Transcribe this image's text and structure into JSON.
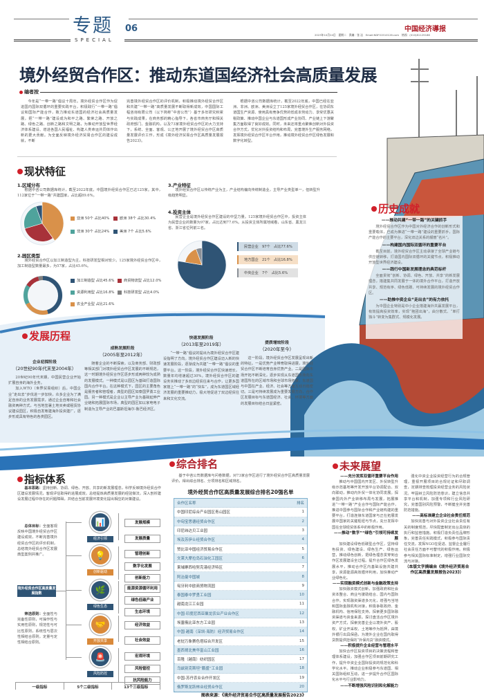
{
  "masthead": {
    "section": "专题",
    "page_number": "06",
    "section_en": "SPECIAL",
    "newspaper_logo": "中国经济導报",
    "dateline": "2023年10月24日　星期二　责编：张 洁　Email:NDF01510126.com　热线：(010)81129186"
  },
  "headline": "境外经贸合作区：推动东道国经济社会高质量发展",
  "editor_note": {
    "heading": "编者按",
    "columns": [
      "今年是“一带一路”倡议十周年。境外经贸合作区作为促进国内国际双循环的重要实践平台，积极践行“一带一路”倡议和国际产能合作，致力推动东道国的经济社会高质量发展，把“一带一路”建设成为和平之路、繁荣之路、开放之路、绿色之路、创新之路和文明之路，为推动开放型世界经济体系建设、增进各国人民福祉、构建人类命运共同体作出新的更大贡献。为全面反映境外经济贸易合作区的建设成就，不断",
      "完善境外经贸合作区的评价机制，积极推动境外经贸合作区和共建“一带一路”高质量发展不断取得新成效，中国国际工程咨询有限公司（以下简称“中咨公司”）基于多年研究积累与实践成果，在商务部的精心指导下，各省市商务厅和相关政府部门、金融机构，以及73家境外经贸合作区的大力支持下，系统、全面、客观、公正地开展了境外经贸合作区高质量发展评价工作，形成《境外经济贸易合作区高质量发展报告2023》。",
      "根据中咨公司数据库统计，截至2022年底，中国已经在亚洲、非洲、欧洲、美洲设立了125家境外经贸合作区，在协调东道国生产资源、使用具有竞争优势的低成本劳动力、享受优惠关税政策、推动中国企业与东道国形成产业协同、产业链上下游聚集方面取得了良好成效。同时，未来还将重点聚焦创新对外投资合作方式，优化对外投资结构和布局，完善境外生产服务网络，发挥境外经贸合作区平台作用，推动境外经贸合作区绿色发展和数字化转型。"
    ]
  },
  "status": {
    "heading": "现状特征",
    "region": {
      "title": "1.区域分布",
      "text": "根据中咨公司数据库统计，截至2022年底，中国境外经贸合作区已达125家。其中，112家位于“一带一路”共建国家，占比超89.6%。",
      "legend": [
        "亚洲 50个 占比40%",
        "欧洲 38个 占比30.4%",
        "非洲 30个 占比24%",
        "美洲 7个 占比5.6%"
      ]
    },
    "park_type": {
      "title": "2.园区类型",
      "text": "境外经贸合作区以加工制造型为主，科技研发型相对较少。125家境外经贸合作区中，加工制造型数量最多，为57家，占比45.6%。",
      "legend": [
        "加工制造型 占比45.6%",
        "商贸物流型 占比12.0%",
        "资源利用型 占比16.8%",
        "科技研发型 占比4.0%",
        "农业产业型 占比21.6%"
      ]
    },
    "industry": {
      "title": "3.产业特征",
      "text": "境外经贸合作区以传统产业为主，产业结构偏向传统制造业，主导产业类型单一，但转型升级趋势明显。"
    },
    "investor": {
      "title": "4.投资主体",
      "text": "民营企业是境外经贸合作区建设的中坚力量。125家境外经贸合作区中，投资主体为民营企业的数量为97家，占比达到77.6%。从投资主体所属地域看，山东省、黑龙江省、浙江省位列前三名。",
      "legend": [
        "民营企业　97个　占比77.6%",
        "地方国企　21个　占比16.8%",
        "中央企业　7个　占比5.6%"
      ]
    }
  },
  "chart_data": [
    {
      "type": "pie",
      "categories": [
        "亚洲",
        "欧洲",
        "非洲",
        "美洲"
      ],
      "values": [
        40,
        30.4,
        24,
        5.6
      ],
      "counts": [
        50,
        38,
        30,
        7
      ],
      "colors": [
        "#d9914a",
        "#a8323a",
        "#4fa39c",
        "#2f5475"
      ]
    },
    {
      "type": "pie",
      "categories": [
        "加工制造型",
        "农业产业型",
        "资源利用型",
        "商贸物流型",
        "科技研发型"
      ],
      "values": [
        45.6,
        21.6,
        16.8,
        12.0,
        4.0
      ],
      "colors": [
        "#2f5475",
        "#d9914a",
        "#4fa39c",
        "#a8323a",
        "#808080"
      ],
      "donut": true
    },
    {
      "type": "pie",
      "categories": [
        "民营企业",
        "地方国企",
        "中央企业"
      ],
      "values": [
        77.6,
        16.8,
        5.6
      ],
      "counts": [
        97,
        21,
        7
      ],
      "colors": [
        "#2f5475",
        "#d9914a",
        "#8a8f96"
      ]
    }
  ],
  "achievements": {
    "heading": "历史成就",
    "items": [
      {
        "title": "——推动共建“一带一路”的关键抓手",
        "text": "境外经贸合作区作为中国对外经济合作的创新形式和重要载体，已成为推进“一带一路”建设的重要抓手，国际产能合作的主要平台，深化双边关系的靓丽“名片”。"
      },
      {
        "title": "——构建国内国际双循环的重要平台",
        "text": "截至目前，境外经贸合作区主动承接了全球产业链与供应链转移，打造国内国际双循环的关键节点，积极推动开放型世界经济建设。"
      },
      {
        "title": "——践行中国新发展理念的典范标杆",
        "text": "全面贯彻“创新、协调、绿色、开放、共享”的新发展理念，搭建集共同发展于一体的境外合作平台，打造开放共享、规范有序、绿色低碳、可持续发展的境外经贸合作区。"
      },
      {
        "title": "——助推中资企业“走出去”的有力依托",
        "text": "为中国企业特别是中小企业搭建海外共赢发展平台，有效提高投资效率，实现“抱团出海”，由分散式、“单打独斗”转变为集群式、规模化发展。"
      }
    ]
  },
  "history": {
    "heading": "发展历程",
    "stages": [
      {
        "title": "企业初探阶段",
        "period": "（20世纪90年代末至2004年）",
        "text": [
          "20世纪90年代末期，中国民营企业开始扩展自身的海外业务。",
          "加入WTO（世界贸易组织）后，中国企业“走出去”步伐进一步加快，众多企业为了满足自身的业务发展需求，通过企业自筹和社会融资两种方式，与当地签署土地买卖或租赁协议建设园区，积极自发筹建海外投资建厂，逐步形成具有特色的各类园区。"
        ]
      },
      {
        "title": "成熟发展阶段",
        "period": "（2005年至2012年）",
        "text": [
          "随着企业的不断探索，以及商务部、财政部等相关部门对境外经贸合作区发展的不断规范，这一时期境外经贸合作区逐步形成两种较为成熟的发展模式。一种模式是以园区为基础打造国际国内合作平台。在这种模式下，园区的主要角色是服务者和管理者，典型的园区如泰国罗勇工业园。另一种模式是企业以主导产业为基础延伸产业链和拓展国际市场，典型的园区如以家电电子制造为主导产业的巴基斯坦海尔-鲁巴经济区。"
        ]
      },
      {
        "title": "快速发展阶段",
        "period": "（2013年至2019年）",
        "text": [
          "“一带一路”倡议的提出为境外经贸合作区建设指明了方向。境外经贸合作区建设迈入新的快速发展阶段，逐渐成为共建“一带一路”倡议的重要平台。这一阶段，境外经贸合作区快速增长，数量年均增速超过30%。境外经贸合作区的建设务实推动了多双边经贸往来与合作，让更多国家搭上“一带一路”的“快车”，成为东道国区域经济发展的重要推动力，极大地促进了双边经贸往来和文化交流。"
        ]
      },
      {
        "title": "提质增效阶段",
        "period": "（2020年至今）",
        "text": [
          "这一阶段，境外经贸合作区发展呈现出新的特征。一是优势产业带育取得进展，境外经贸合作区不断培育自身优势产业。二是国际市场开拓不断深化，逐步实现从东道国市场向东道国所在的区域市场和全球市场拓展，东道国与中国在产业、经济、社会等方面互动日趋密切。三是可持续发展成为重要发展方向，合作区发展目标与东道国经济、社会、环境等方面的发展目标结合日益紧密。"
        ]
      }
    ]
  },
  "indicators": {
    "heading": "指标体系",
    "basic_idea_label": "基本思路：",
    "basic_idea": "坚持创新、协调、绿色、开放、共享的新发展理念，科学反映境外经贸合作区建设发展情况，客观评估取得的进展成效，总结提炼高质量发展的经验做法，深入剖析建设发展过程中存在的问题障碍，并结合当前发展环境变化提出相应的对策建议。",
    "goal_label": "总体目标：",
    "goal": "全面客观反映中国境外经贸合作区建设成效，不断完善境外经贸合作区的评价机制，总结境外经贸合作区发展典型案例并推广。",
    "principle_label": "筛选原则：",
    "principle": "全面性与完备性原则，可操作性与实用性原则，规范性与可比性原则，系统性与层次性相结合原则，定量与定性相结合原则。",
    "index_name": "境外经贸合作区高质量发展指数",
    "level2": [
      {
        "name": "经济引领",
        "icon": "chart-icon",
        "color": "#2f5475",
        "level3": [
          "发展规模",
          "发展质量"
        ]
      },
      {
        "name": "创新驱动",
        "icon": "lightbulb-head-icon",
        "color": "#d9893a",
        "level3": [
          "管理创新",
          "数字化发展",
          "创新能力"
        ]
      },
      {
        "name": "绿色生态",
        "icon": "leaf-hand-icon",
        "color": "#2f5475",
        "level3": [
          "能源资源循环利用",
          "绿色低碳产业",
          "生态环境"
        ]
      },
      {
        "name": "开放共享",
        "icon": "handshake-icon",
        "color": "#d9893a",
        "level3": [
          "经济效益",
          "社会效益"
        ]
      },
      {
        "name": "风险防控",
        "icon": "alarm-icon",
        "color": "#2f5475",
        "level3": [
          "宏观环境",
          "风险管控",
          "抗风险能力"
        ]
      }
    ],
    "footer": [
      "一级指标",
      "5个二级指标",
      "13个三级指标"
    ]
  },
  "ranking": {
    "heading": "综合排名",
    "intro": "基于中咨公司数据库与问卷数据，对73家合作区进行了境外经贸合作区高质量发展评价，得出综合排名、分项排名和区域排名。",
    "table_title": "境外经贸合作区高质量发展综合排名20强名单",
    "columns": [
      "合作区名称",
      "排名"
    ],
    "rows": [
      [
        "中国印尼综合产业园区青山园区",
        "1"
      ],
      [
        "中匈宝思德经贸合作区",
        "2"
      ],
      [
        "印尼纬达贝工业园",
        "3"
      ],
      [
        "埃及苏伊士经贸合作区",
        "4"
      ],
      [
        "赞比亚中国经济贸易合作区",
        "5"
      ],
      [
        "文莱大摩拉岛石油化工园区",
        "6"
      ],
      [
        "柬埔寨西哈努克港经济特区",
        "7"
      ],
      [
        "阿治曼中国城",
        "8"
      ],
      [
        "匈牙利中欧商贸物流园",
        "9"
      ],
      [
        "泰国泰中罗勇工业园",
        "10"
      ],
      [
        "越南龙江工业园",
        "11"
      ],
      [
        "中国·印度尼西亚聚龙农业产业合作区",
        "12"
      ],
      [
        "埃塞俄比亚东方工业园",
        "13"
      ],
      [
        "中国·越南（深圳-海防）经济贸易合作区",
        "14"
      ],
      [
        "老挝万象赛色塔综合开发区",
        "15"
      ],
      [
        "墨西哥北美华富山工业园",
        "16"
      ],
      [
        "百隆（越南）纺织园区",
        "17"
      ],
      [
        "乌兹别克斯坦“鹏盛”工业园",
        "18"
      ],
      [
        "中国-苏丹农业合作开发区",
        "19"
      ],
      [
        "俄罗斯龙跃林业经贸合作区",
        "20"
      ]
    ],
    "source": "图表来源：《境外经济贸易合作区高质量发展报告2023》"
  },
  "outlook": {
    "heading": "未来展望",
    "items": [
      {
        "title": "——充分发挥双循环重要平台作用",
        "text": "推动与中国国内开发区、外贸转型升级示范基地等开发开放平台协调配合、双向联动，推动内外贸一体化协同发展。探索国内外产业转移布局与发展，拓展推进“一带一路”产业合作与国际产能合作，推进中国参与国际合作和产业链构建的重要平台，打造连接东道国家与正在拓展发展中国家的关键枢纽与节点，充分发挥中国在全球经贸体系中的积极作用。"
      },
      {
        "title": "——推动“数字”“绿色”引领可持续发展",
        "text": "加快建设绿色低碳型合作区，坚持绿色投资、绿色建设、绿色生产、绿色运营，推动绿色创新，把绿色理念贯穿到合作区发展建设全过程。提升合作区绿色发展水平，推动合作区内基础设施共建共享，资源能源高效循环利用，加快推动产业绿色化。"
      },
      {
        "title": "——实现融资模式创新与金融政策支持",
        "text": "加快融资模式创新，加强政府和社会资本整合、商业与援助结合、国内与国际合作。实现融资渠道多元化，增强与当地和国际金融机构对接，积极争取政府、金融机构、信用保险支持，探索更多国际融资渠道与资金来源。探讨盘活合作区境外资产方式，探索完善企业以境外资产、股权、矿业开采权、土地等作为抵押，由境外银行出具保函，为境外企业在国内取得贷款提供担保的“外保内贷”融资模式。"
      },
      {
        "title": "——积极提升企业经营与管理水平",
        "text": "加快合作区投资项目的决策流程和管理体系建设，加强合作区项目前期研究工作，提升中资企业国际投资的规范化和科学化水平。推动企业积极参与东道国、相关国际组织互动，进一步提升合作区国际化水平与行业影响力。"
      },
      {
        "title": "——不断增强风险识别和化解能力",
        "text": "强化中资企业投资经营行为的合规管理，重视开展项目的合规论证和尽职调查，定期排查梳理投资经营业务的风险状况。牢固树立风险防范意识，建立信息共享平台和机制，加强专项和行业风险研究，完善国别风险预警，不断健全并完善防范措施。"
      },
      {
        "title": "——高标准建立企业社会责任规范",
        "text": "加快完善与对外投资企业社会责任有关的制度规范，尽快配套制定出台具体的执行和监管措施。积极打造负责任品牌形象，完善责任实践模式，积极参与国际责任交流，发挥NGO在促进、监督企业履行社会责任方面不可替代的积极作用。积极参与相关国际标准制定，增强行业国际交流与对接。"
      }
    ],
    "closing_note": "（本版文字摘编自《境外经济贸易合作区高质量发展报告2023》）"
  }
}
